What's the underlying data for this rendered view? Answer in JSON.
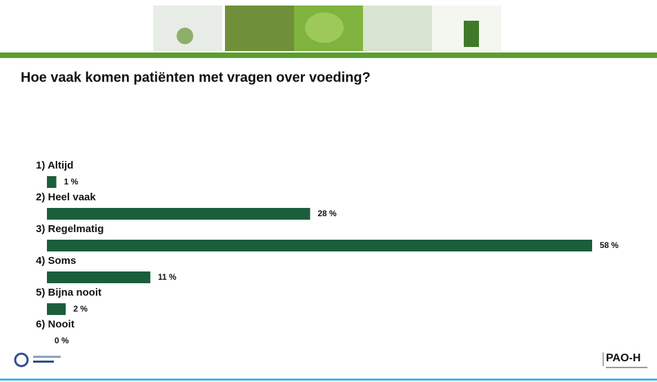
{
  "chart_data": {
    "type": "bar",
    "orientation": "horizontal",
    "title": "Hoe vaak komen patiënten met vragen over voeding?",
    "categories": [
      "1) Altijd",
      "2) Heel vaak",
      "3) Regelmatig",
      "4) Soms",
      "5) Bijna nooit",
      "6) Nooit"
    ],
    "values": [
      1,
      28,
      58,
      11,
      2,
      0
    ],
    "value_labels": [
      "1 %",
      "28 %",
      "58 %",
      "11 %",
      "2 %",
      "0 %"
    ],
    "color": "#1b5e3b"
  },
  "footer": {
    "logo": "PAO-H"
  }
}
